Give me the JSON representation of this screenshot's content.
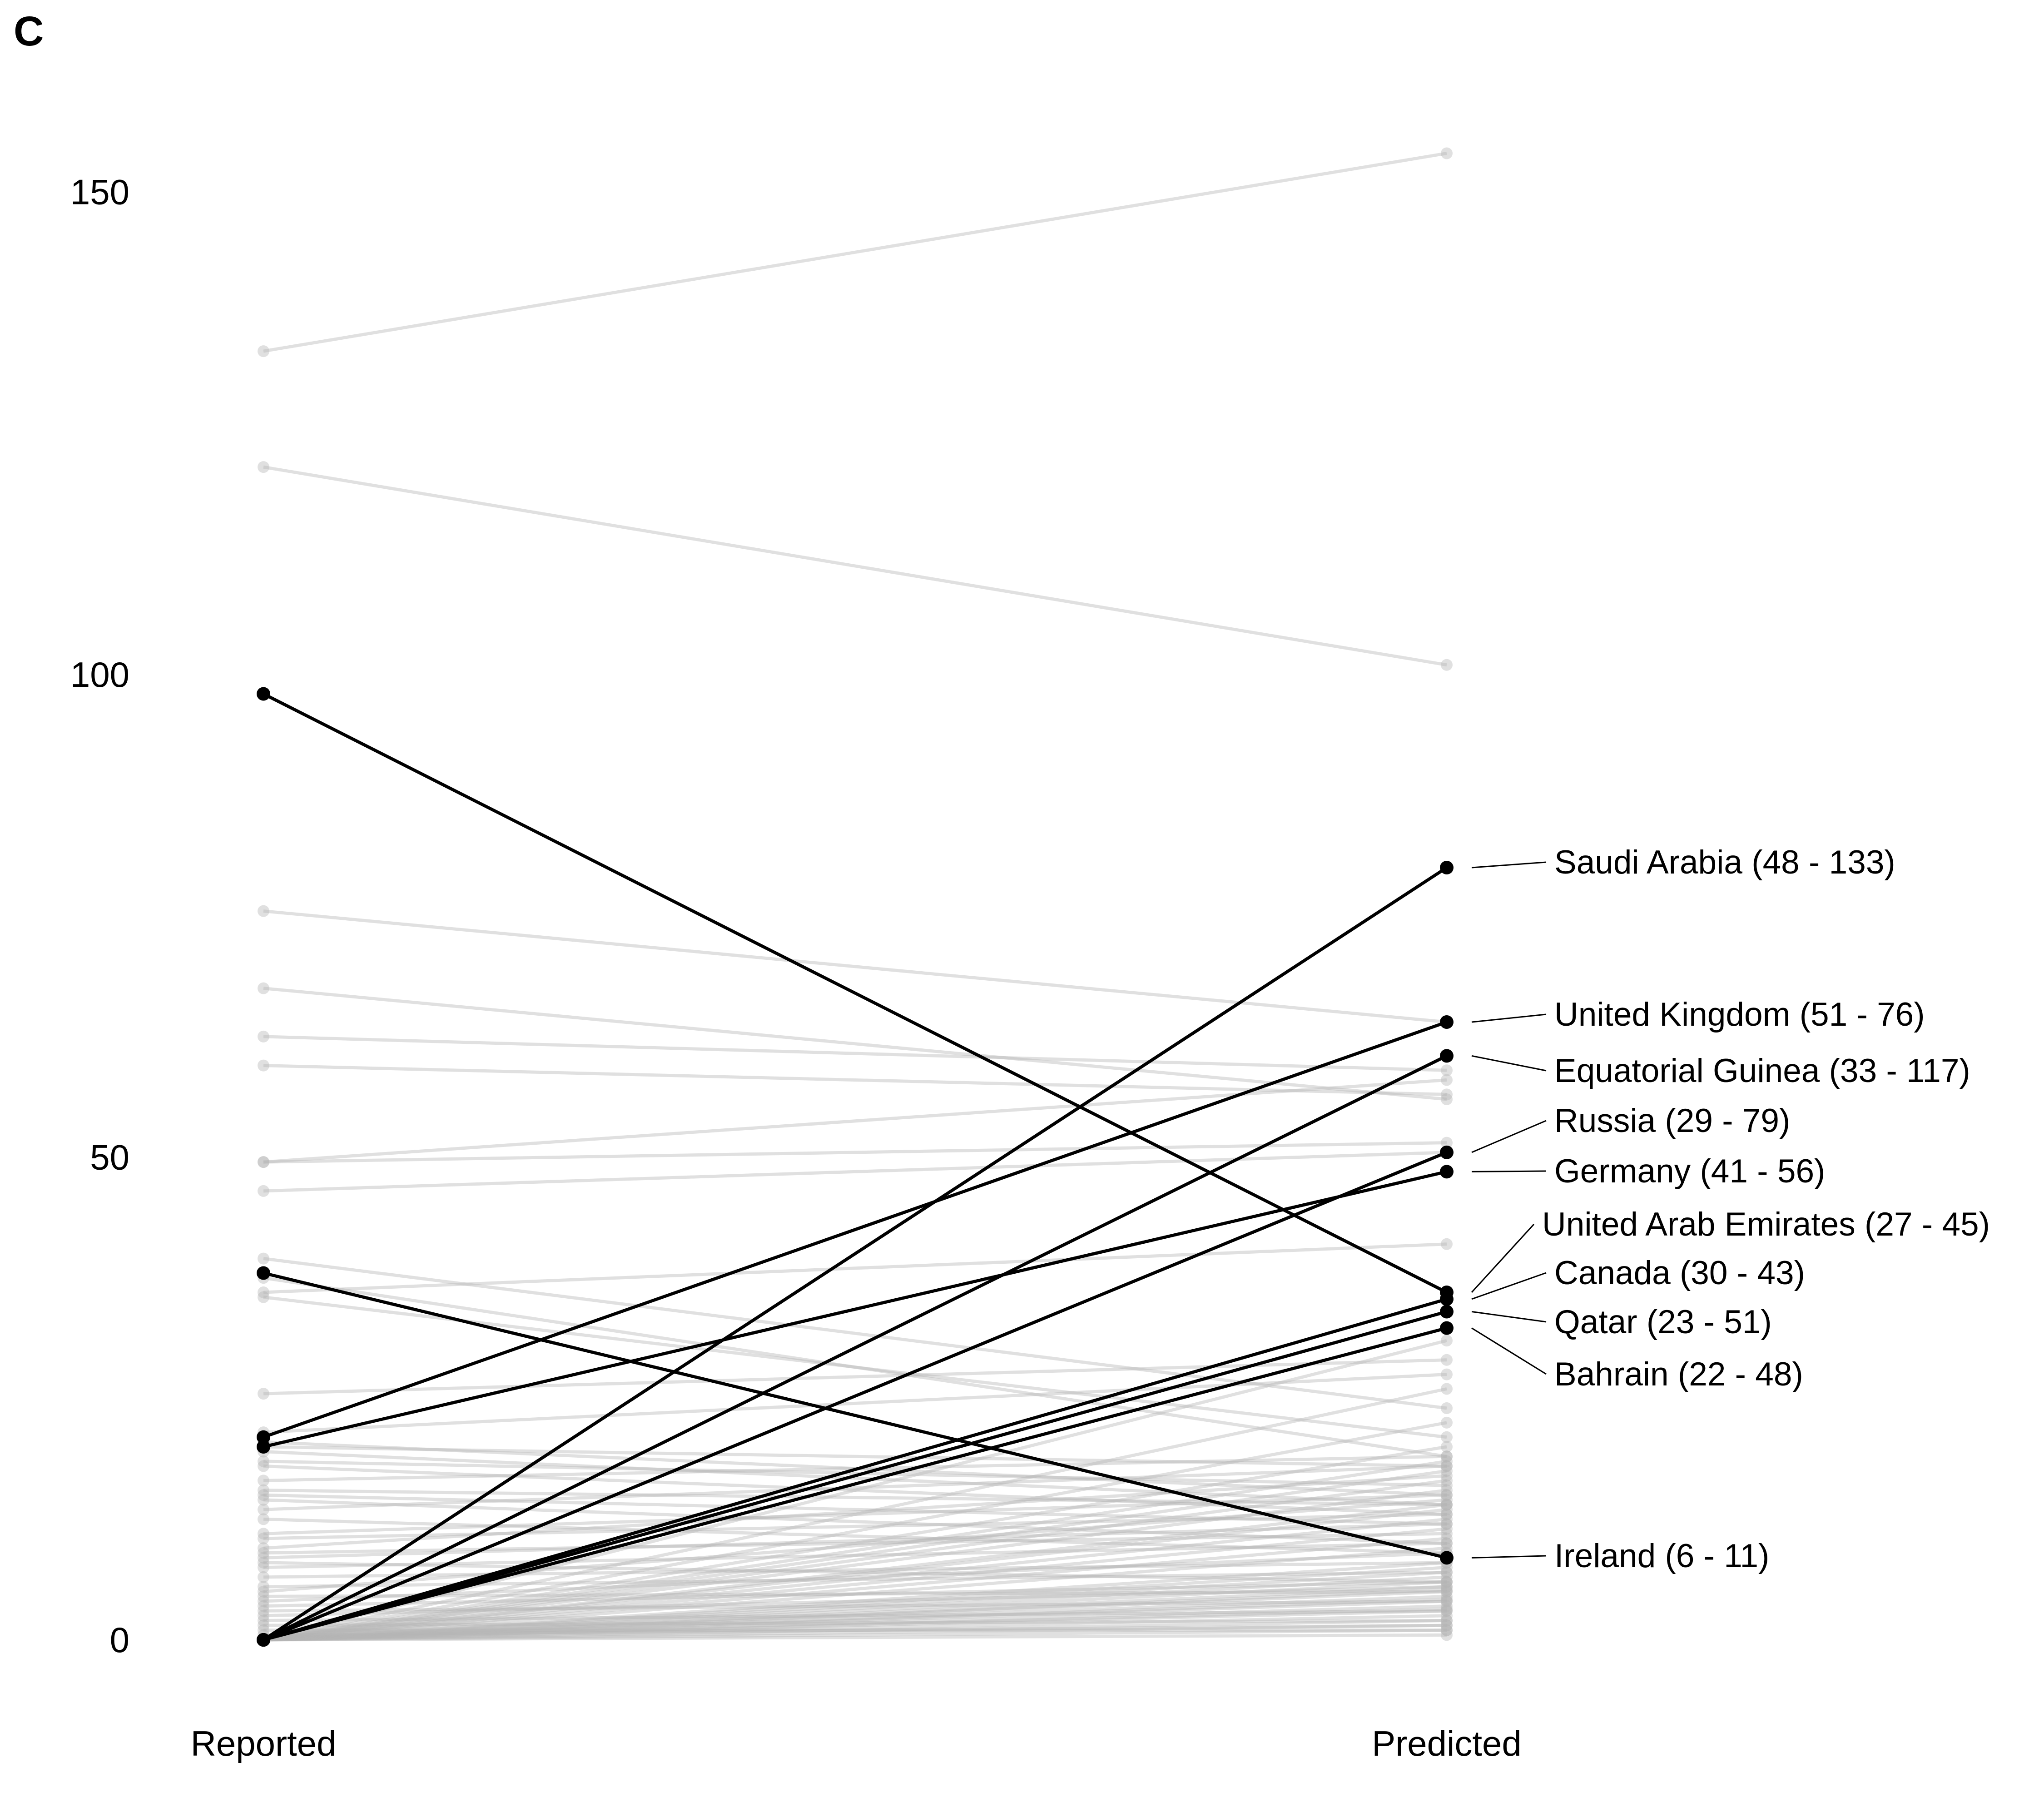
{
  "panel_label": "C",
  "chart_data": {
    "type": "line",
    "subtype": "slope",
    "title": "",
    "xlabel": "",
    "ylabel": "",
    "categories": [
      "Reported",
      "Predicted"
    ],
    "y_ticks": [
      "0",
      "50",
      "100",
      "150"
    ],
    "ylim": [
      -5,
      157
    ],
    "grid": false,
    "highlight_color": "#000000",
    "background_color": "#b5b5b5",
    "highlighted_series": [
      {
        "name": "Saudi Arabia",
        "label": "Saudi Arabia (48 - 133)",
        "values": [
          0,
          80
        ]
      },
      {
        "name": "United Kingdom",
        "label": "United Kingdom (51 - 76)",
        "values": [
          21,
          64
        ]
      },
      {
        "name": "Equatorial Guinea",
        "label": "Equatorial Guinea (33 - 117)",
        "values": [
          0,
          60.5
        ]
      },
      {
        "name": "Russia",
        "label": "Russia (29 - 79)",
        "values": [
          0,
          50.5
        ]
      },
      {
        "name": "Germany",
        "label": "Germany (41 - 56)",
        "values": [
          20,
          48.5
        ]
      },
      {
        "name": "United Arab Emirates",
        "label": "United Arab Emirates (27 - 45)",
        "values": [
          98,
          36
        ]
      },
      {
        "name": "Canada",
        "label": "Canada (30 - 43)",
        "values": [
          0,
          35.3
        ]
      },
      {
        "name": "Qatar",
        "label": "Qatar (23 - 51)",
        "values": [
          0,
          34
        ]
      },
      {
        "name": "Bahrain",
        "label": "Bahrain (22 - 48)",
        "values": [
          0,
          32.3
        ]
      },
      {
        "name": "Ireland",
        "label": "Ireland (6 - 11)",
        "values": [
          38,
          8.5
        ]
      }
    ],
    "background_series": [
      [
        133.5,
        154
      ],
      [
        121.5,
        101
      ],
      [
        75.5,
        64
      ],
      [
        67.5,
        56
      ],
      [
        62.5,
        59
      ],
      [
        59.5,
        56.5
      ],
      [
        49.5,
        51.5
      ],
      [
        49.5,
        58
      ],
      [
        46.5,
        50.5
      ],
      [
        39.5,
        24
      ],
      [
        36,
        41
      ],
      [
        37.5,
        19
      ],
      [
        35.5,
        21
      ],
      [
        25.5,
        29
      ],
      [
        21.5,
        27.5
      ],
      [
        20.5,
        15
      ],
      [
        20,
        18
      ],
      [
        19.5,
        14
      ],
      [
        18.5,
        16
      ],
      [
        18,
        13
      ],
      [
        16.5,
        19
      ],
      [
        15.5,
        14
      ],
      [
        15,
        12
      ],
      [
        14.5,
        10
      ],
      [
        13.5,
        18
      ],
      [
        12.5,
        9
      ],
      [
        11,
        15
      ],
      [
        10.5,
        13
      ],
      [
        9.5,
        17
      ],
      [
        9,
        11
      ],
      [
        8.5,
        12
      ],
      [
        8,
        6
      ],
      [
        7.5,
        10
      ],
      [
        6.5,
        8
      ],
      [
        5.5,
        7
      ],
      [
        5,
        14.5
      ],
      [
        4.5,
        5
      ],
      [
        4,
        9
      ],
      [
        3.5,
        6
      ],
      [
        3,
        4
      ],
      [
        2.5,
        5.5
      ],
      [
        2,
        3
      ],
      [
        1.5,
        2
      ],
      [
        1,
        1
      ],
      [
        0.5,
        1.5
      ],
      [
        0,
        6.5
      ],
      [
        0,
        7
      ],
      [
        0,
        5.5
      ],
      [
        0,
        5
      ],
      [
        0,
        4.5
      ],
      [
        0,
        4
      ],
      [
        0,
        3.5
      ],
      [
        0,
        3
      ],
      [
        0,
        2.5
      ],
      [
        0,
        2
      ],
      [
        0,
        1.5
      ],
      [
        0,
        1
      ],
      [
        0,
        0.5
      ],
      [
        0,
        7.5
      ],
      [
        0,
        8
      ],
      [
        0,
        9.5
      ],
      [
        0,
        10.5
      ],
      [
        0,
        11.5
      ],
      [
        0,
        12.5
      ],
      [
        0,
        13.5
      ],
      [
        0,
        14
      ],
      [
        0,
        15.5
      ],
      [
        0,
        16.5
      ],
      [
        0,
        17.5
      ],
      [
        0,
        18.5
      ],
      [
        0,
        20
      ],
      [
        0,
        22.5
      ],
      [
        0,
        26
      ],
      [
        0,
        31
      ],
      [
        0,
        6
      ],
      [
        0,
        5.2
      ],
      [
        0,
        4.2
      ],
      [
        0,
        3.2
      ]
    ]
  }
}
